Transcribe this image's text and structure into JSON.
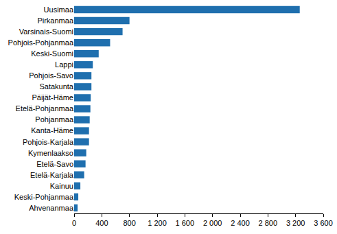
{
  "chart_data": {
    "type": "bar",
    "orientation": "horizontal",
    "categories": [
      "Uusimaa",
      "Pirkanmaa",
      "Varsinais-Suomi",
      "Pohjois-Pohjanmaa",
      "Keski-Suomi",
      "Lappi",
      "Pohjois-Savo",
      "Satakunta",
      "Päijät-Häme",
      "Etelä-Pohjanmaa",
      "Pohjanmaa",
      "Kanta-Häme",
      "Pohjois-Karjala",
      "Kymenlaakso",
      "Etelä-Savo",
      "Etelä-Karjala",
      "Kainuu",
      "Keski-Pohjanmaa",
      "Ahvenanmaa"
    ],
    "values": [
      3260,
      800,
      700,
      520,
      355,
      270,
      250,
      250,
      240,
      235,
      225,
      215,
      215,
      175,
      165,
      145,
      90,
      60,
      50
    ],
    "color": "#1f6fae",
    "xlim": [
      0,
      3600
    ],
    "xticks": [
      0,
      400,
      800,
      {
        "value": 1200,
        "label": "1 200"
      },
      {
        "value": 1600,
        "label": "1 600"
      },
      {
        "value": 2000,
        "label": "2 000"
      },
      {
        "value": 2400,
        "label": "2 400"
      },
      {
        "value": 2800,
        "label": "2 800"
      },
      {
        "value": 3200,
        "label": "3 200"
      },
      {
        "value": 3600,
        "label": "3 600"
      }
    ],
    "grid": false
  }
}
